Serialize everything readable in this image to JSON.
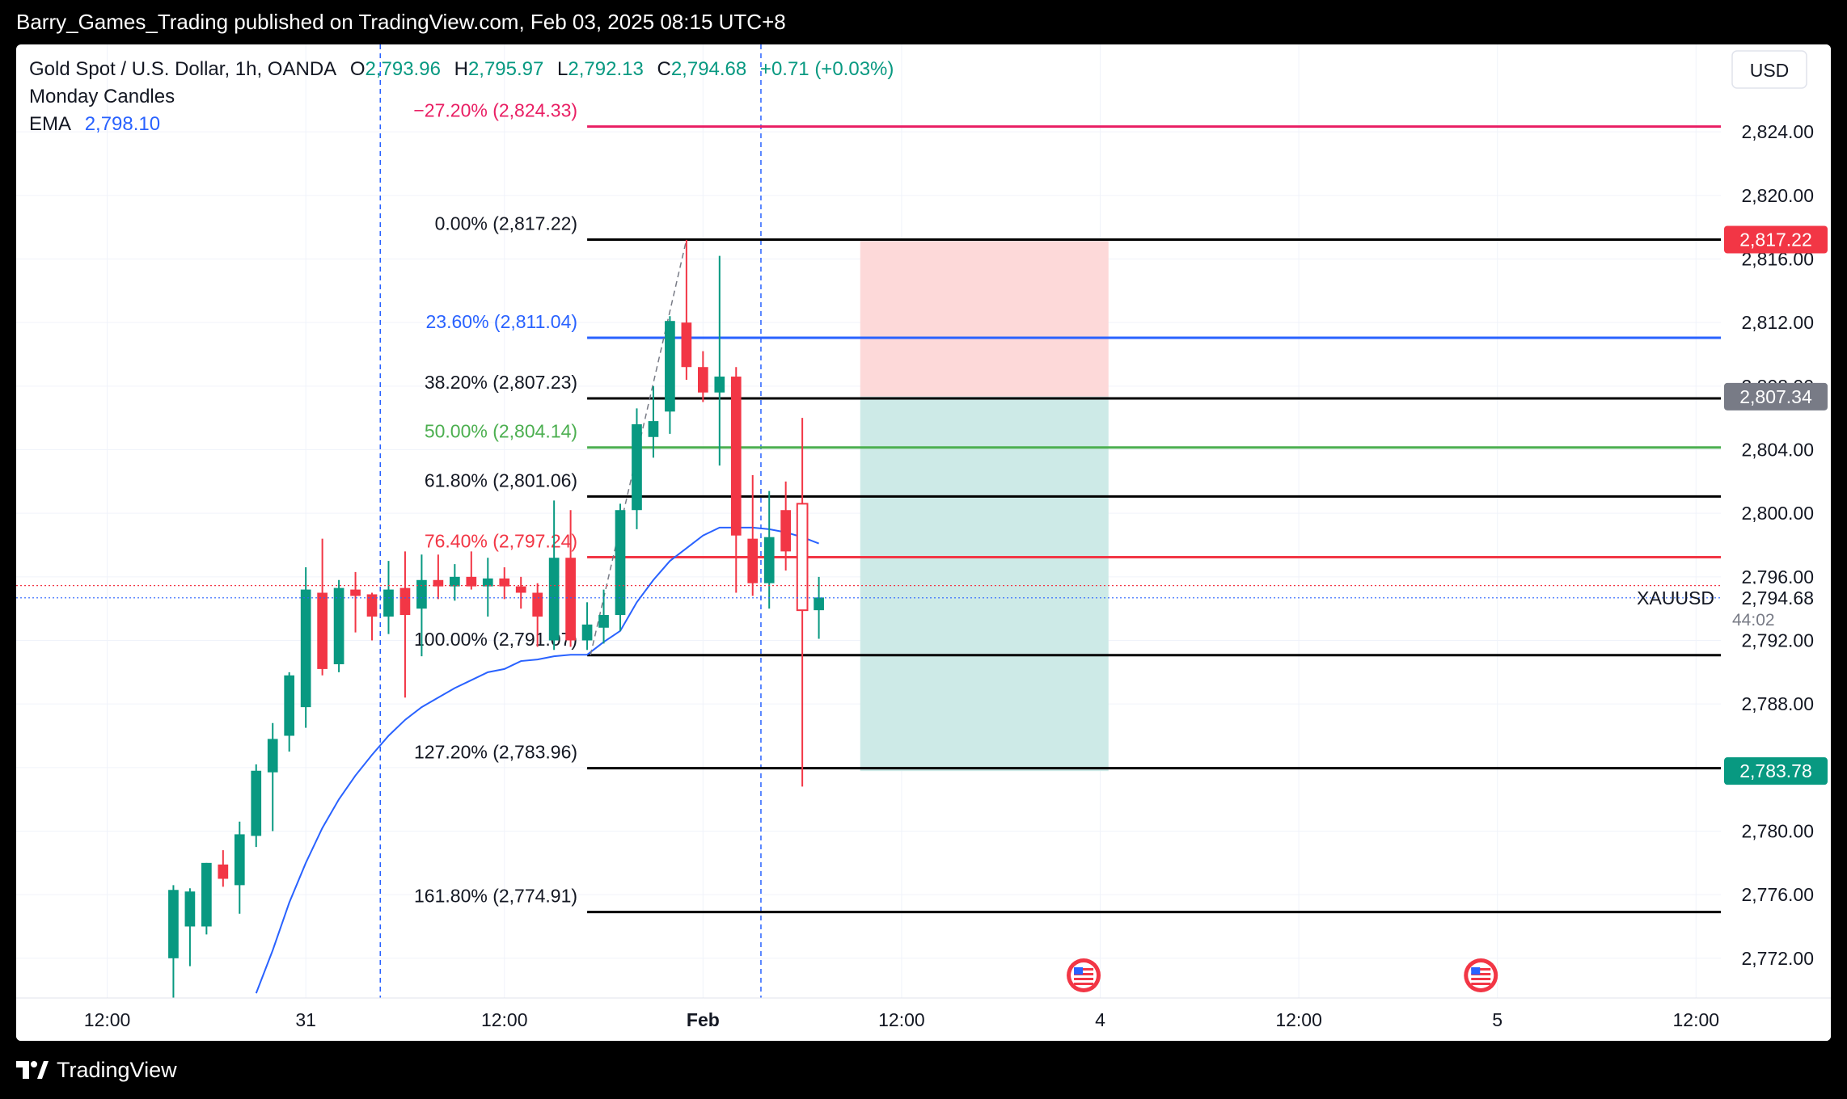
{
  "header": {
    "publisher_line": "Barry_Games_Trading published on TradingView.com, Feb 03, 2025 08:15 UTC+8"
  },
  "legend": {
    "symbol": "Gold Spot / U.S. Dollar, 1h, OANDA",
    "o_label": "O",
    "o_value": "2,793.96",
    "h_label": "H",
    "h_value": "2,795.97",
    "l_label": "L",
    "l_value": "2,792.13",
    "c_label": "C",
    "c_value": "2,794.68",
    "change": "+0.71 (+0.03%)",
    "indicator1": "Monday Candles",
    "ema_label": "EMA",
    "ema_value": "2,798.10"
  },
  "footer": {
    "brand": "TradingView"
  },
  "colors": {
    "up": "#089981",
    "down": "#f23645",
    "ema": "#2962ff",
    "fib_236": "#2962ff",
    "fib_50": "#4caf50",
    "fib_764": "#f23645",
    "fib_ext": "#e91e63",
    "risk_zone": "#fdd9d9",
    "reward_zone": "#cdeae7"
  },
  "chart_data": {
    "type": "candlestick",
    "currency_label": "USD",
    "symbol_tag": "XAUUSD",
    "last_price": "2,794.68",
    "countdown": "44:02",
    "ylim": [
      2769.5,
      2829.5
    ],
    "y_ticks": [
      "2,772.00",
      "2,776.00",
      "2,780.00",
      "2,784.00",
      "2,788.00",
      "2,792.00",
      "2,796.00",
      "2,800.00",
      "2,804.00",
      "2,808.00",
      "2,812.00",
      "2,816.00",
      "2,820.00",
      "2,824.00"
    ],
    "y_tick_values": [
      2772,
      2776,
      2780,
      2784,
      2788,
      2792,
      2796,
      2800,
      2804,
      2808,
      2812,
      2816,
      2820,
      2824
    ],
    "x_labels": [
      {
        "label": "12:00",
        "t": -13
      },
      {
        "label": "31",
        "t": -1
      },
      {
        "label": "12:00",
        "t": 11
      },
      {
        "label": "Feb",
        "t": 23
      },
      {
        "label": "12:00",
        "t": 35
      },
      {
        "label": "4",
        "t": 47
      },
      {
        "label": "12:00",
        "t": 59
      },
      {
        "label": "5",
        "t": 71
      },
      {
        "label": "12:00",
        "t": 83
      }
    ],
    "x_range": [
      -18.5,
      84.5
    ],
    "price_badges": [
      {
        "label": "2,817.22",
        "value": 2817.22,
        "color": "#f23645"
      },
      {
        "label": "2,807.34",
        "value": 2807.34,
        "color": "#787b86"
      },
      {
        "label": "2,783.78",
        "value": 2783.78,
        "color": "#089981"
      }
    ],
    "fib_levels": [
      {
        "label": "−27.20% (2,824.33)",
        "value": 2824.33,
        "color": "#e91e63",
        "label_color": "#e91e63"
      },
      {
        "label": "0.00% (2,817.22)",
        "value": 2817.22,
        "color": "#000000",
        "label_color": "#131722"
      },
      {
        "label": "23.60% (2,811.04)",
        "value": 2811.04,
        "color": "#2962ff",
        "label_color": "#2962ff"
      },
      {
        "label": "38.20% (2,807.23)",
        "value": 2807.23,
        "color": "#000000",
        "label_color": "#131722"
      },
      {
        "label": "50.00% (2,804.14)",
        "value": 2804.14,
        "color": "#4caf50",
        "label_color": "#4caf50"
      },
      {
        "label": "61.80% (2,801.06)",
        "value": 2801.06,
        "color": "#000000",
        "label_color": "#131722"
      },
      {
        "label": "76.40% (2,797.24)",
        "value": 2797.24,
        "color": "#f23645",
        "label_color": "#f23645"
      },
      {
        "label": "100.00% (2,791.07)",
        "value": 2791.07,
        "color": "#000000",
        "label_color": "#131722"
      },
      {
        "label": "127.20% (2,783.96)",
        "value": 2783.96,
        "color": "#000000",
        "label_color": "#131722"
      },
      {
        "label": "161.80% (2,774.91)",
        "value": 2774.91,
        "color": "#000000",
        "label_color": "#131722"
      }
    ],
    "fib_start_t": 16,
    "fib_end_t": 84.5,
    "position": {
      "start_t": 32.5,
      "end_t": 47.5,
      "entry": 2807.34,
      "stop": 2817.22,
      "target": 2783.78
    },
    "session_lines_t": [
      3.5,
      26.5
    ],
    "event_markers_t": [
      46,
      70
    ],
    "candles": [
      {
        "t": -9,
        "o": 2772.0,
        "h": 2776.6,
        "l": 2768.0,
        "c": 2776.3
      },
      {
        "t": -8,
        "o": 2774.0,
        "h": 2776.4,
        "l": 2771.5,
        "c": 2776.2
      },
      {
        "t": -7,
        "o": 2774.0,
        "h": 2778.0,
        "l": 2773.5,
        "c": 2778.0
      },
      {
        "t": -6,
        "o": 2777.9,
        "h": 2778.8,
        "l": 2776.5,
        "c": 2777.0
      },
      {
        "t": -5,
        "o": 2776.6,
        "h": 2780.6,
        "l": 2774.8,
        "c": 2779.8
      },
      {
        "t": -4,
        "o": 2779.7,
        "h": 2784.2,
        "l": 2779.0,
        "c": 2783.8
      },
      {
        "t": -3,
        "o": 2783.7,
        "h": 2786.8,
        "l": 2780.0,
        "c": 2785.8
      },
      {
        "t": -2,
        "o": 2786.0,
        "h": 2790.0,
        "l": 2785.0,
        "c": 2789.8
      },
      {
        "t": -1,
        "o": 2787.8,
        "h": 2796.6,
        "l": 2786.5,
        "c": 2795.2
      },
      {
        "t": 0,
        "o": 2795.0,
        "h": 2798.4,
        "l": 2789.8,
        "c": 2790.2
      },
      {
        "t": 1,
        "o": 2790.5,
        "h": 2795.8,
        "l": 2790.0,
        "c": 2795.3
      },
      {
        "t": 2,
        "o": 2795.2,
        "h": 2796.3,
        "l": 2792.5,
        "c": 2794.8
      },
      {
        "t": 3,
        "o": 2794.9,
        "h": 2795.0,
        "l": 2792.0,
        "c": 2793.5
      },
      {
        "t": 4,
        "o": 2793.5,
        "h": 2797.0,
        "l": 2792.4,
        "c": 2795.2
      },
      {
        "t": 5,
        "o": 2795.3,
        "h": 2797.6,
        "l": 2788.4,
        "c": 2793.6
      },
      {
        "t": 6,
        "o": 2794.0,
        "h": 2797.4,
        "l": 2791.0,
        "c": 2795.8
      },
      {
        "t": 7,
        "o": 2795.8,
        "h": 2797.4,
        "l": 2794.6,
        "c": 2795.4
      },
      {
        "t": 8,
        "o": 2795.4,
        "h": 2796.8,
        "l": 2794.5,
        "c": 2796.0
      },
      {
        "t": 9,
        "o": 2796.0,
        "h": 2797.6,
        "l": 2795.2,
        "c": 2795.4
      },
      {
        "t": 10,
        "o": 2795.4,
        "h": 2797.2,
        "l": 2793.5,
        "c": 2795.9
      },
      {
        "t": 11,
        "o": 2795.9,
        "h": 2796.6,
        "l": 2794.6,
        "c": 2795.4
      },
      {
        "t": 12,
        "o": 2795.4,
        "h": 2796.0,
        "l": 2794.0,
        "c": 2795.0
      },
      {
        "t": 13,
        "o": 2795.0,
        "h": 2795.6,
        "l": 2791.6,
        "c": 2793.5
      },
      {
        "t": 14,
        "o": 2792.0,
        "h": 2800.8,
        "l": 2791.4,
        "c": 2797.2
      },
      {
        "t": 15,
        "o": 2797.2,
        "h": 2800.2,
        "l": 2791.6,
        "c": 2792.0
      },
      {
        "t": 16,
        "o": 2792.0,
        "h": 2794.4,
        "l": 2791.4,
        "c": 2793.0
      },
      {
        "t": 17,
        "o": 2792.8,
        "h": 2795.2,
        "l": 2791.8,
        "c": 2793.6
      },
      {
        "t": 18,
        "o": 2793.6,
        "h": 2800.6,
        "l": 2792.6,
        "c": 2800.2
      },
      {
        "t": 19,
        "o": 2800.2,
        "h": 2806.6,
        "l": 2799.0,
        "c": 2805.6
      },
      {
        "t": 20,
        "o": 2804.8,
        "h": 2808.0,
        "l": 2803.5,
        "c": 2805.8
      },
      {
        "t": 21,
        "o": 2806.4,
        "h": 2812.4,
        "l": 2805.0,
        "c": 2812.1
      },
      {
        "t": 22,
        "o": 2812.0,
        "h": 2817.2,
        "l": 2808.4,
        "c": 2809.2
      },
      {
        "t": 23,
        "o": 2809.2,
        "h": 2810.2,
        "l": 2807.0,
        "c": 2807.6
      },
      {
        "t": 24,
        "o": 2807.6,
        "h": 2816.2,
        "l": 2803.0,
        "c": 2808.6
      },
      {
        "t": 25,
        "o": 2808.6,
        "h": 2809.2,
        "l": 2795.0,
        "c": 2798.6
      },
      {
        "t": 26,
        "o": 2798.4,
        "h": 2802.4,
        "l": 2794.8,
        "c": 2795.6
      },
      {
        "t": 27,
        "o": 2795.6,
        "h": 2801.4,
        "l": 2794.0,
        "c": 2798.5
      },
      {
        "t": 28,
        "o": 2800.2,
        "h": 2802.0,
        "l": 2796.4,
        "c": 2797.6
      },
      {
        "t": 29,
        "o": 2800.6,
        "h": 2806.0,
        "l": 2782.8,
        "c": 2793.9
      },
      {
        "t": 30,
        "o": 2793.9,
        "h": 2796.0,
        "l": 2792.1,
        "c": 2794.7
      }
    ],
    "hollow_candle_t": 29,
    "ema": [
      {
        "t": -4,
        "v": 2769.8
      },
      {
        "t": -3,
        "v": 2772.5
      },
      {
        "t": -2,
        "v": 2775.5
      },
      {
        "t": -1,
        "v": 2778.0
      },
      {
        "t": 0,
        "v": 2780.2
      },
      {
        "t": 1,
        "v": 2782.0
      },
      {
        "t": 2,
        "v": 2783.5
      },
      {
        "t": 3,
        "v": 2784.8
      },
      {
        "t": 4,
        "v": 2786.0
      },
      {
        "t": 5,
        "v": 2787.0
      },
      {
        "t": 6,
        "v": 2787.8
      },
      {
        "t": 7,
        "v": 2788.4
      },
      {
        "t": 8,
        "v": 2789.0
      },
      {
        "t": 9,
        "v": 2789.5
      },
      {
        "t": 10,
        "v": 2790.0
      },
      {
        "t": 11,
        "v": 2790.2
      },
      {
        "t": 12,
        "v": 2790.7
      },
      {
        "t": 13,
        "v": 2790.8
      },
      {
        "t": 14,
        "v": 2791.0
      },
      {
        "t": 15,
        "v": 2791.1
      },
      {
        "t": 16,
        "v": 2791.1
      },
      {
        "t": 17,
        "v": 2791.9
      },
      {
        "t": 18,
        "v": 2792.6
      },
      {
        "t": 19,
        "v": 2794.4
      },
      {
        "t": 20,
        "v": 2795.8
      },
      {
        "t": 21,
        "v": 2797.0
      },
      {
        "t": 22,
        "v": 2797.8
      },
      {
        "t": 23,
        "v": 2798.6
      },
      {
        "t": 24,
        "v": 2799.1
      },
      {
        "t": 25,
        "v": 2799.1
      },
      {
        "t": 26,
        "v": 2799.1
      },
      {
        "t": 27,
        "v": 2799.0
      },
      {
        "t": 28,
        "v": 2798.8
      },
      {
        "t": 29,
        "v": 2798.5
      },
      {
        "t": 30,
        "v": 2798.1
      }
    ]
  }
}
